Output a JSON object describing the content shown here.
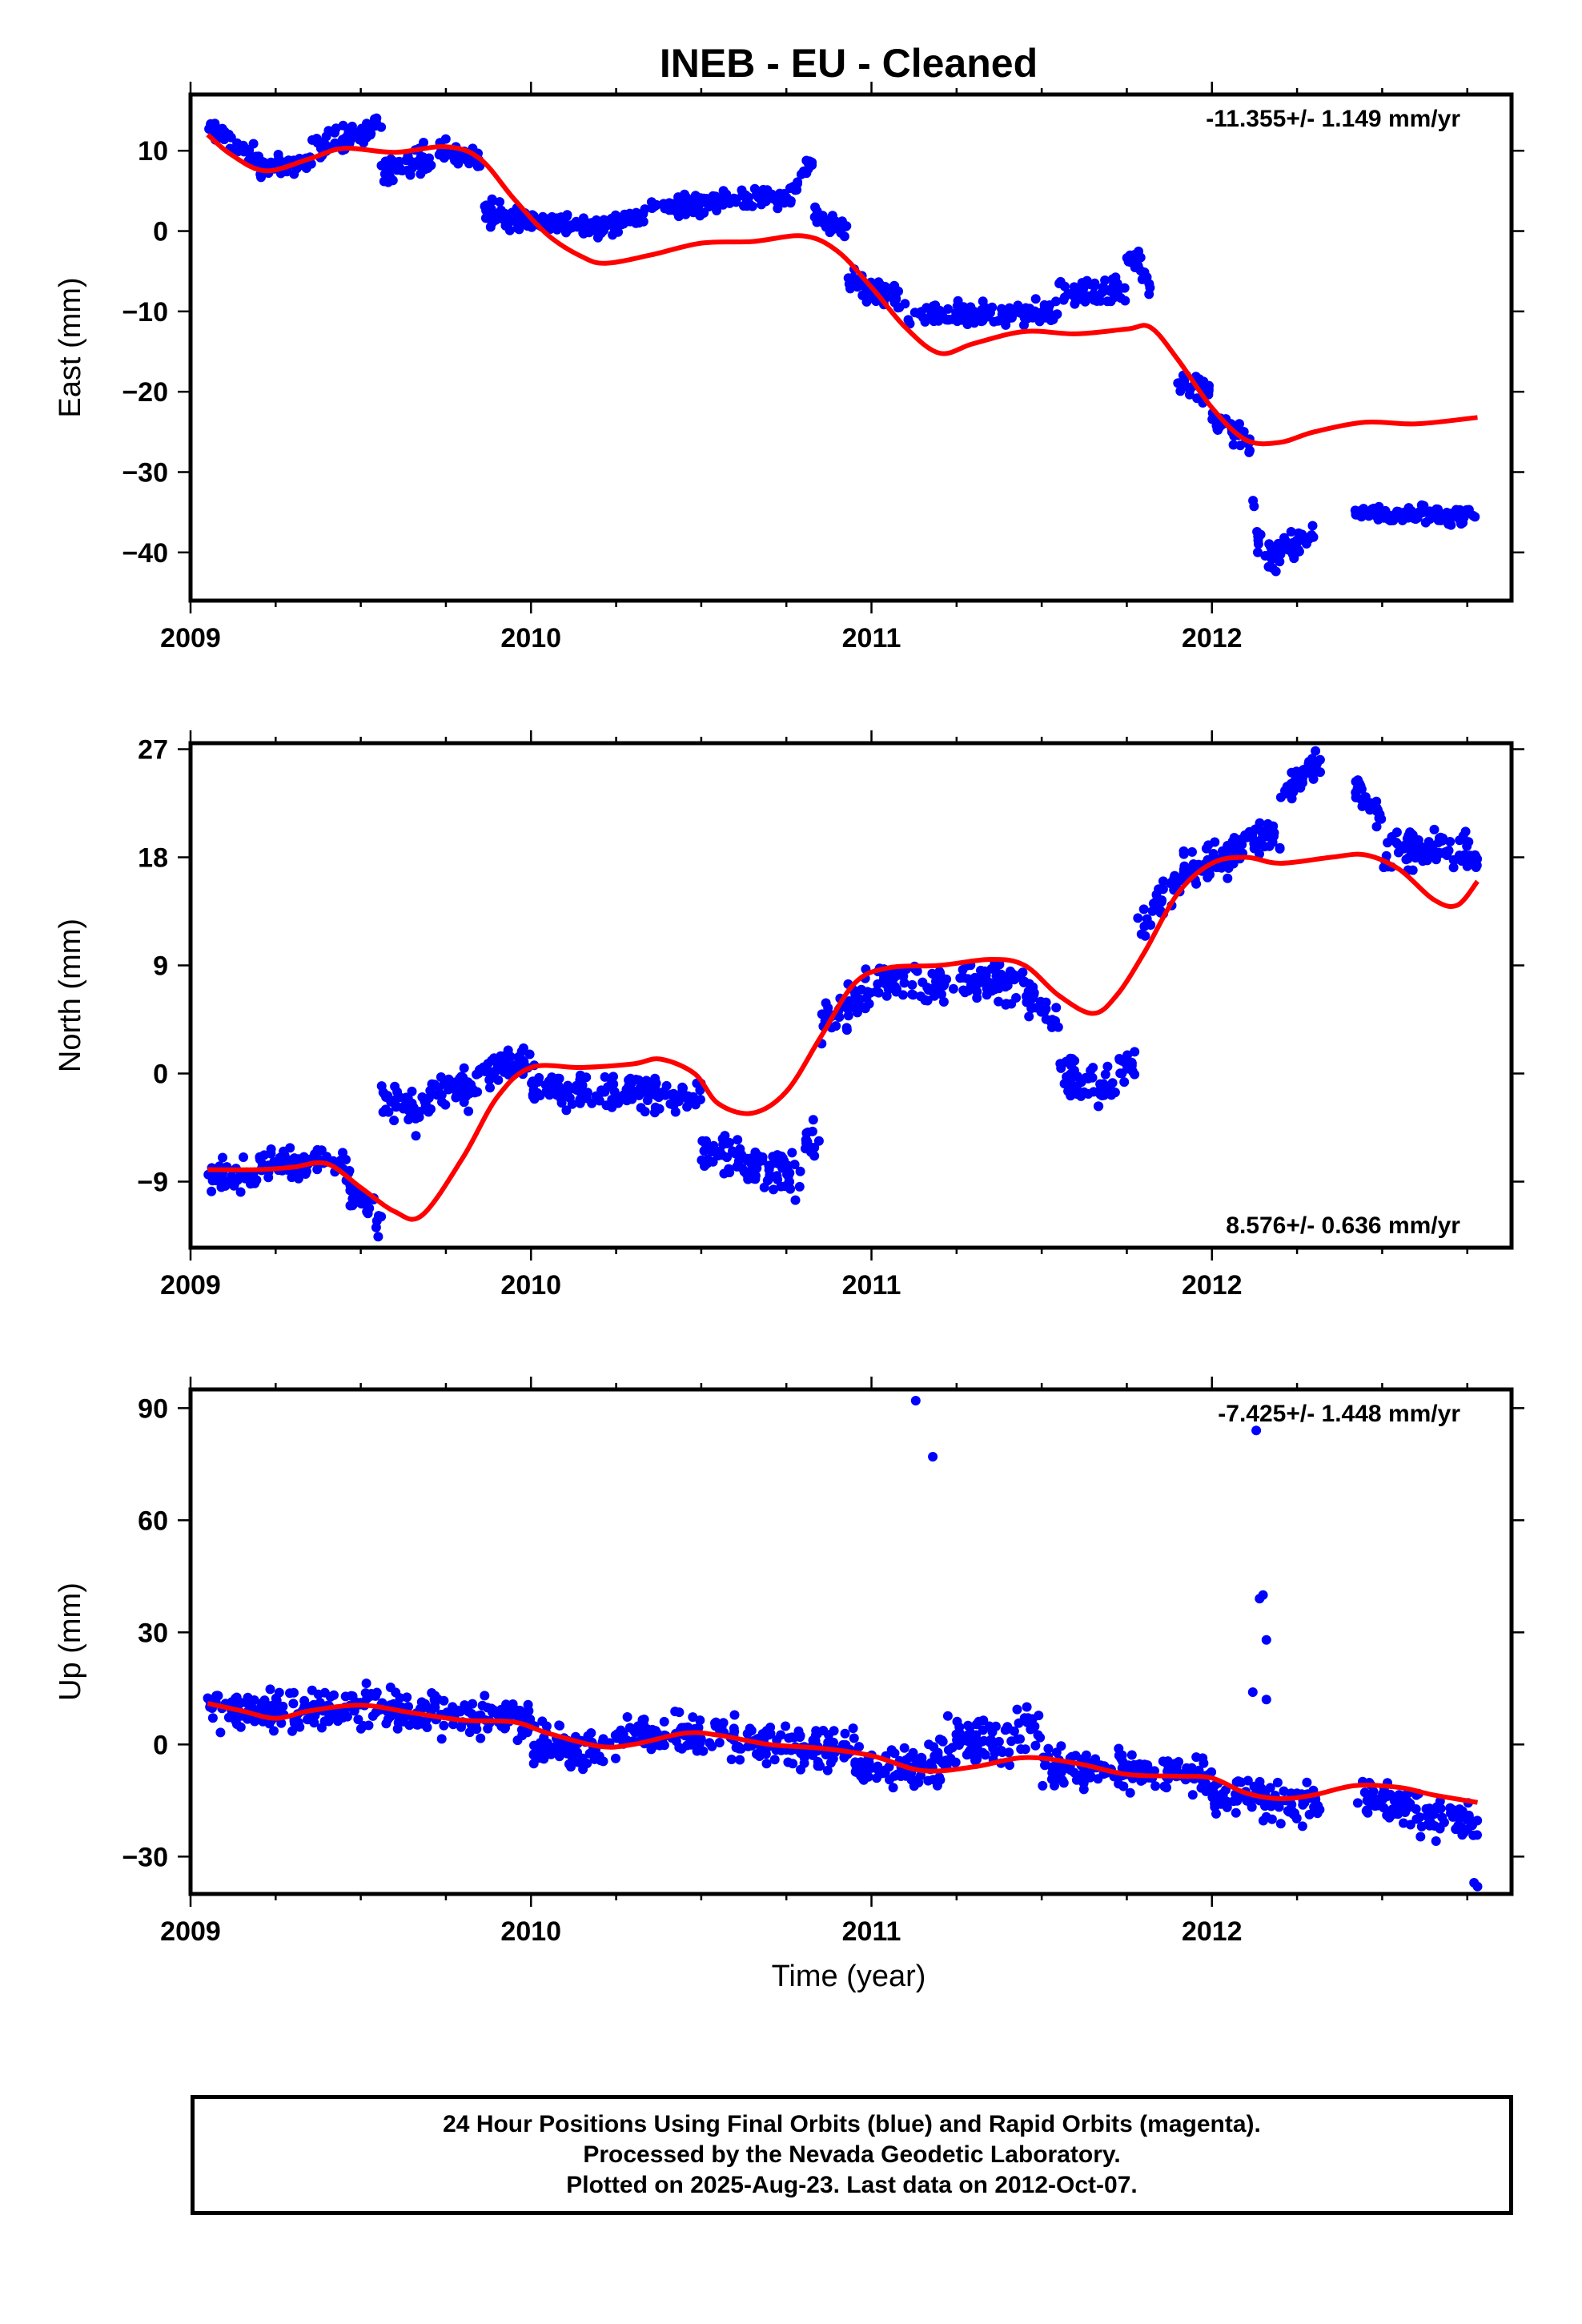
{
  "title": "INEB  - EU - Cleaned",
  "xlabel": "Time (year)",
  "footer": [
    "24 Hour Positions Using Final Orbits (blue) and Rapid Orbits (magenta).",
    "Processed by the Nevada Geodetic Laboratory.",
    "Plotted on 2025-Aug-23. Last data on 2012-Oct-07."
  ],
  "colors": {
    "points": "#0000ff",
    "model": "#ff0000",
    "frame": "#000000"
  },
  "chart_data": [
    {
      "type": "scatter",
      "ylabel": "East (mm)",
      "rate": "-11.355+/- 1.149 mm/yr",
      "rate_position": "top-right",
      "xlim": [
        2009.0,
        2012.88
      ],
      "ylim": [
        -46,
        17
      ],
      "xticks": [
        2009,
        2010,
        2011,
        2012
      ],
      "yticks": [
        10,
        0,
        -10,
        -20,
        -30,
        -40
      ],
      "tick_labels": [
        "10",
        "0",
        "−10",
        "−20",
        "−30",
        "−40"
      ],
      "model_knots": [
        [
          2009.05,
          12
        ],
        [
          2009.12,
          9.5
        ],
        [
          2009.22,
          7.5
        ],
        [
          2009.35,
          9
        ],
        [
          2009.45,
          10.3
        ],
        [
          2009.6,
          9.8
        ],
        [
          2009.75,
          10.5
        ],
        [
          2009.85,
          9
        ],
        [
          2009.95,
          4
        ],
        [
          2010.05,
          -0.5
        ],
        [
          2010.15,
          -3.2
        ],
        [
          2010.22,
          -4
        ],
        [
          2010.35,
          -3
        ],
        [
          2010.5,
          -1.5
        ],
        [
          2010.65,
          -1.3
        ],
        [
          2010.8,
          -0.6
        ],
        [
          2010.9,
          -2.5
        ],
        [
          2011.0,
          -7
        ],
        [
          2011.1,
          -12
        ],
        [
          2011.2,
          -15.2
        ],
        [
          2011.3,
          -14
        ],
        [
          2011.45,
          -12.5
        ],
        [
          2011.6,
          -12.8
        ],
        [
          2011.75,
          -12.2
        ],
        [
          2011.82,
          -12
        ],
        [
          2011.9,
          -16
        ],
        [
          2012.0,
          -22
        ],
        [
          2012.1,
          -26
        ],
        [
          2012.2,
          -26.3
        ],
        [
          2012.3,
          -25
        ],
        [
          2012.45,
          -23.8
        ],
        [
          2012.6,
          -24
        ],
        [
          2012.78,
          -23.2
        ]
      ],
      "point_clusters": [
        {
          "x0": 2009.05,
          "x1": 2009.2,
          "y0": 13,
          "y1": 9,
          "noise": 1.0
        },
        {
          "x0": 2009.2,
          "x1": 2009.35,
          "y0": 8,
          "y1": 8.5,
          "noise": 1.0
        },
        {
          "x0": 2009.35,
          "x1": 2009.56,
          "y0": 10,
          "y1": 13,
          "noise": 1.3
        },
        {
          "x0": 2009.56,
          "x1": 2009.75,
          "y0": 7,
          "y1": 10,
          "noise": 1.3
        },
        {
          "x0": 2009.75,
          "x1": 2009.85,
          "y0": 10,
          "y1": 9,
          "noise": 1.0
        },
        {
          "x0": 2009.85,
          "x1": 2010.0,
          "y0": 3,
          "y1": 1,
          "noise": 1.2
        },
        {
          "x0": 2010.0,
          "x1": 2010.2,
          "y0": 1.5,
          "y1": 0.5,
          "noise": 1.0
        },
        {
          "x0": 2010.2,
          "x1": 2010.35,
          "y0": 0.5,
          "y1": 2,
          "noise": 0.9
        },
        {
          "x0": 2010.35,
          "x1": 2010.78,
          "y0": 3,
          "y1": 4.5,
          "noise": 1.0
        },
        {
          "x0": 2010.78,
          "x1": 2010.83,
          "y0": 6,
          "y1": 9,
          "noise": 0.8
        },
        {
          "x0": 2010.83,
          "x1": 2010.93,
          "y0": 2,
          "y1": 0,
          "noise": 1.0
        },
        {
          "x0": 2010.93,
          "x1": 2011.1,
          "y0": -6,
          "y1": -9,
          "noise": 1.2
        },
        {
          "x0": 2011.1,
          "x1": 2011.55,
          "y0": -10.5,
          "y1": -10,
          "noise": 1.0
        },
        {
          "x0": 2011.55,
          "x1": 2011.75,
          "y0": -8,
          "y1": -7.5,
          "noise": 1.2
        },
        {
          "x0": 2011.75,
          "x1": 2011.83,
          "y0": -3,
          "y1": -7,
          "noise": 1.3
        },
        {
          "x0": 2011.9,
          "x1": 2012.0,
          "y0": -19,
          "y1": -20,
          "noise": 1.0
        },
        {
          "x0": 2012.0,
          "x1": 2012.12,
          "y0": -23,
          "y1": -27,
          "noise": 1.1
        },
        {
          "x0": 2012.12,
          "x1": 2012.15,
          "y0": -35,
          "y1": -40,
          "noise": 2.0
        },
        {
          "x0": 2012.15,
          "x1": 2012.3,
          "y0": -41,
          "y1": -38,
          "noise": 1.3
        },
        {
          "x0": 2012.42,
          "x1": 2012.78,
          "y0": -35,
          "y1": -35.5,
          "noise": 0.8
        }
      ]
    },
    {
      "type": "scatter",
      "ylabel": "North (mm)",
      "rate": "8.576+/- 0.636 mm/yr",
      "rate_position": "bottom-right",
      "xlim": [
        2009.0,
        2012.88
      ],
      "ylim": [
        -14.5,
        27.5
      ],
      "xticks": [
        2009,
        2010,
        2011,
        2012
      ],
      "yticks": [
        27,
        18,
        9,
        0,
        -9
      ],
      "tick_labels": [
        "27",
        "18",
        "9",
        "0",
        "−9"
      ],
      "model_knots": [
        [
          2009.05,
          -8
        ],
        [
          2009.2,
          -8
        ],
        [
          2009.3,
          -7.8
        ],
        [
          2009.4,
          -7.5
        ],
        [
          2009.5,
          -9.5
        ],
        [
          2009.6,
          -11.5
        ],
        [
          2009.68,
          -11.8
        ],
        [
          2009.8,
          -7
        ],
        [
          2009.9,
          -2
        ],
        [
          2010.0,
          0.5
        ],
        [
          2010.15,
          0.5
        ],
        [
          2010.3,
          0.8
        ],
        [
          2010.38,
          1.2
        ],
        [
          2010.48,
          0
        ],
        [
          2010.55,
          -2.5
        ],
        [
          2010.65,
          -3.3
        ],
        [
          2010.75,
          -1.5
        ],
        [
          2010.85,
          3
        ],
        [
          2010.95,
          7.5
        ],
        [
          2011.05,
          8.8
        ],
        [
          2011.2,
          9
        ],
        [
          2011.35,
          9.5
        ],
        [
          2011.45,
          9
        ],
        [
          2011.55,
          6.5
        ],
        [
          2011.65,
          5
        ],
        [
          2011.72,
          6.5
        ],
        [
          2011.8,
          10
        ],
        [
          2011.9,
          15
        ],
        [
          2012.0,
          17.5
        ],
        [
          2012.1,
          18
        ],
        [
          2012.2,
          17.5
        ],
        [
          2012.35,
          18
        ],
        [
          2012.45,
          18.2
        ],
        [
          2012.55,
          17
        ],
        [
          2012.65,
          14.5
        ],
        [
          2012.72,
          14
        ],
        [
          2012.78,
          16
        ]
      ],
      "point_clusters": [
        {
          "x0": 2009.05,
          "x1": 2009.2,
          "y0": -8.5,
          "y1": -8.5,
          "noise": 1.0
        },
        {
          "x0": 2009.2,
          "x1": 2009.45,
          "y0": -7.5,
          "y1": -7,
          "noise": 1.0
        },
        {
          "x0": 2009.45,
          "x1": 2009.56,
          "y0": -9,
          "y1": -12,
          "noise": 1.2
        },
        {
          "x0": 2009.56,
          "x1": 2009.68,
          "y0": -2,
          "y1": -4,
          "noise": 1.2
        },
        {
          "x0": 2009.68,
          "x1": 2009.85,
          "y0": -2,
          "y1": -1,
          "noise": 1.2
        },
        {
          "x0": 2009.85,
          "x1": 2010.0,
          "y0": 0,
          "y1": 1,
          "noise": 1.2
        },
        {
          "x0": 2010.0,
          "x1": 2010.5,
          "y0": -1,
          "y1": -2,
          "noise": 1.1
        },
        {
          "x0": 2010.5,
          "x1": 2010.8,
          "y0": -6,
          "y1": -9,
          "noise": 1.3
        },
        {
          "x0": 2010.8,
          "x1": 2010.85,
          "y0": -6,
          "y1": -5,
          "noise": 1.0
        },
        {
          "x0": 2010.85,
          "x1": 2011.0,
          "y0": 4,
          "y1": 7,
          "noise": 1.2
        },
        {
          "x0": 2011.0,
          "x1": 2011.45,
          "y0": 7.5,
          "y1": 7.5,
          "noise": 1.2
        },
        {
          "x0": 2011.45,
          "x1": 2011.55,
          "y0": 7,
          "y1": 4,
          "noise": 1.2
        },
        {
          "x0": 2011.55,
          "x1": 2011.72,
          "y0": 0,
          "y1": -1.5,
          "noise": 1.2
        },
        {
          "x0": 2011.72,
          "x1": 2011.78,
          "y0": 0,
          "y1": 2,
          "noise": 1.5
        },
        {
          "x0": 2011.78,
          "x1": 2011.92,
          "y0": 12,
          "y1": 17,
          "noise": 1.3
        },
        {
          "x0": 2011.92,
          "x1": 2012.08,
          "y0": 17,
          "y1": 18.5,
          "noise": 1.2
        },
        {
          "x0": 2012.08,
          "x1": 2012.2,
          "y0": 19,
          "y1": 20,
          "noise": 1.0
        },
        {
          "x0": 2012.2,
          "x1": 2012.32,
          "y0": 23,
          "y1": 26,
          "noise": 1.0
        },
        {
          "x0": 2012.42,
          "x1": 2012.5,
          "y0": 24,
          "y1": 21,
          "noise": 1.2
        },
        {
          "x0": 2012.5,
          "x1": 2012.78,
          "y0": 19,
          "y1": 18,
          "noise": 1.3
        }
      ]
    },
    {
      "type": "scatter",
      "ylabel": "Up (mm)",
      "rate": "-7.425+/- 1.448 mm/yr",
      "rate_position": "top-right",
      "xlim": [
        2009.0,
        2012.88
      ],
      "ylim": [
        -40,
        95
      ],
      "xticks": [
        2009,
        2010,
        2011,
        2012
      ],
      "yticks": [
        90,
        60,
        30,
        0,
        -30
      ],
      "tick_labels": [
        "90",
        "60",
        "30",
        "0",
        "−30"
      ],
      "model_knots": [
        [
          2009.05,
          11
        ],
        [
          2009.15,
          9
        ],
        [
          2009.25,
          7
        ],
        [
          2009.35,
          9
        ],
        [
          2009.5,
          10.5
        ],
        [
          2009.65,
          8.5
        ],
        [
          2009.8,
          6.5
        ],
        [
          2009.95,
          6
        ],
        [
          2010.05,
          3
        ],
        [
          2010.2,
          -0.5
        ],
        [
          2010.3,
          0
        ],
        [
          2010.45,
          3
        ],
        [
          2010.55,
          2.5
        ],
        [
          2010.7,
          0
        ],
        [
          2010.85,
          -1
        ],
        [
          2011.0,
          -3
        ],
        [
          2011.15,
          -7
        ],
        [
          2011.3,
          -6
        ],
        [
          2011.45,
          -3.5
        ],
        [
          2011.6,
          -5
        ],
        [
          2011.75,
          -8
        ],
        [
          2011.9,
          -8.5
        ],
        [
          2012.0,
          -9
        ],
        [
          2012.1,
          -13
        ],
        [
          2012.2,
          -14.5
        ],
        [
          2012.3,
          -13.5
        ],
        [
          2012.42,
          -11
        ],
        [
          2012.55,
          -11.5
        ],
        [
          2012.65,
          -13.5
        ],
        [
          2012.78,
          -15.5
        ]
      ],
      "point_clusters": [
        {
          "x0": 2009.05,
          "x1": 2009.35,
          "y0": 10,
          "y1": 8,
          "noise": 4
        },
        {
          "x0": 2009.35,
          "x1": 2009.6,
          "y0": 9,
          "y1": 11,
          "noise": 4
        },
        {
          "x0": 2009.6,
          "x1": 2010.0,
          "y0": 9,
          "y1": 6,
          "noise": 4
        },
        {
          "x0": 2010.0,
          "x1": 2010.25,
          "y0": 0,
          "y1": -2,
          "noise": 4
        },
        {
          "x0": 2010.25,
          "x1": 2010.6,
          "y0": 2,
          "y1": 3,
          "noise": 4
        },
        {
          "x0": 2010.6,
          "x1": 2010.95,
          "y0": 0,
          "y1": -1,
          "noise": 4
        },
        {
          "x0": 2010.95,
          "x1": 2011.2,
          "y0": -6,
          "y1": -6,
          "noise": 4
        },
        {
          "x0": 2011.2,
          "x1": 2011.5,
          "y0": -1,
          "y1": 3,
          "noise": 5
        },
        {
          "x0": 2011.5,
          "x1": 2012.0,
          "y0": -6,
          "y1": -8,
          "noise": 4
        },
        {
          "x0": 2012.0,
          "x1": 2012.32,
          "y0": -14,
          "y1": -15,
          "noise": 4
        },
        {
          "x0": 2012.42,
          "x1": 2012.78,
          "y0": -14,
          "y1": -22,
          "noise": 4
        }
      ],
      "outliers": [
        [
          2011.13,
          92
        ],
        [
          2011.18,
          77
        ],
        [
          2012.13,
          84
        ],
        [
          2012.14,
          39
        ],
        [
          2012.15,
          40
        ],
        [
          2012.16,
          28
        ],
        [
          2012.12,
          14
        ],
        [
          2012.16,
          12
        ],
        [
          2012.78,
          -38
        ],
        [
          2012.77,
          -37
        ]
      ]
    }
  ]
}
